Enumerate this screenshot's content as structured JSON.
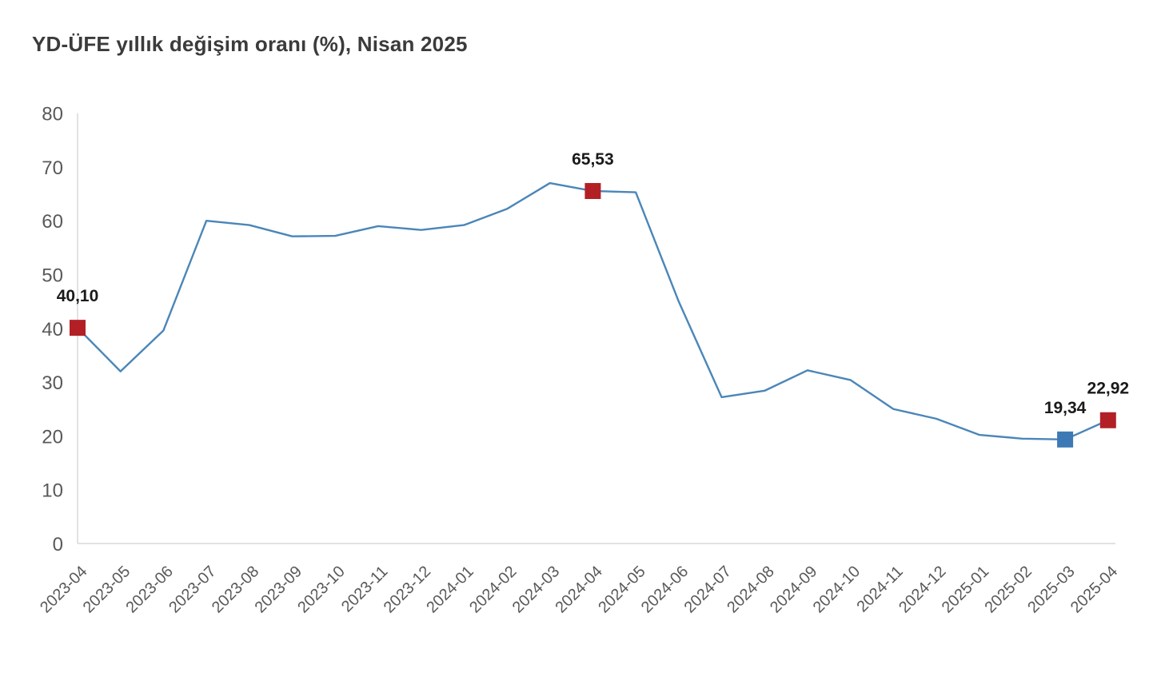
{
  "header": {
    "title": "YD-ÜFE yıllık değişim oranı (%), Nisan 2025"
  },
  "chart_data": {
    "type": "line",
    "title": "YD-ÜFE yıllık değişim oranı (%), Nisan 2025",
    "xlabel": "",
    "ylabel": "",
    "ylim": [
      0,
      80
    ],
    "y_ticks": [
      0,
      10,
      20,
      30,
      40,
      50,
      60,
      70,
      80
    ],
    "grid": false,
    "legend": false,
    "categories": [
      "2023-04",
      "2023-05",
      "2023-06",
      "2023-07",
      "2023-08",
      "2023-09",
      "2023-10",
      "2023-11",
      "2023-12",
      "2024-01",
      "2024-02",
      "2024-03",
      "2024-04",
      "2024-05",
      "2024-06",
      "2024-07",
      "2024-08",
      "2024-09",
      "2024-10",
      "2024-11",
      "2024-12",
      "2025-01",
      "2025-02",
      "2025-03",
      "2025-04"
    ],
    "values": [
      40.1,
      32.0,
      39.6,
      60.0,
      59.2,
      57.1,
      57.2,
      59.0,
      58.3,
      59.2,
      62.2,
      67.0,
      65.53,
      65.3,
      45.0,
      27.2,
      28.4,
      32.2,
      30.4,
      25.0,
      23.2,
      20.2,
      19.5,
      19.34,
      22.92
    ],
    "highlights": [
      {
        "index": 0,
        "label": "40,10",
        "color": "#b22026"
      },
      {
        "index": 12,
        "label": "65,53",
        "color": "#b22026"
      },
      {
        "index": 23,
        "label": "19,34",
        "color": "#3d7ab5"
      },
      {
        "index": 24,
        "label": "22,92",
        "color": "#b22026"
      }
    ],
    "colors": {
      "line": "#4a86b8",
      "axis": "#d9d9d9",
      "tick_text": "#595959",
      "value_label_text": "#1a1a1a",
      "background": "#ffffff"
    }
  }
}
